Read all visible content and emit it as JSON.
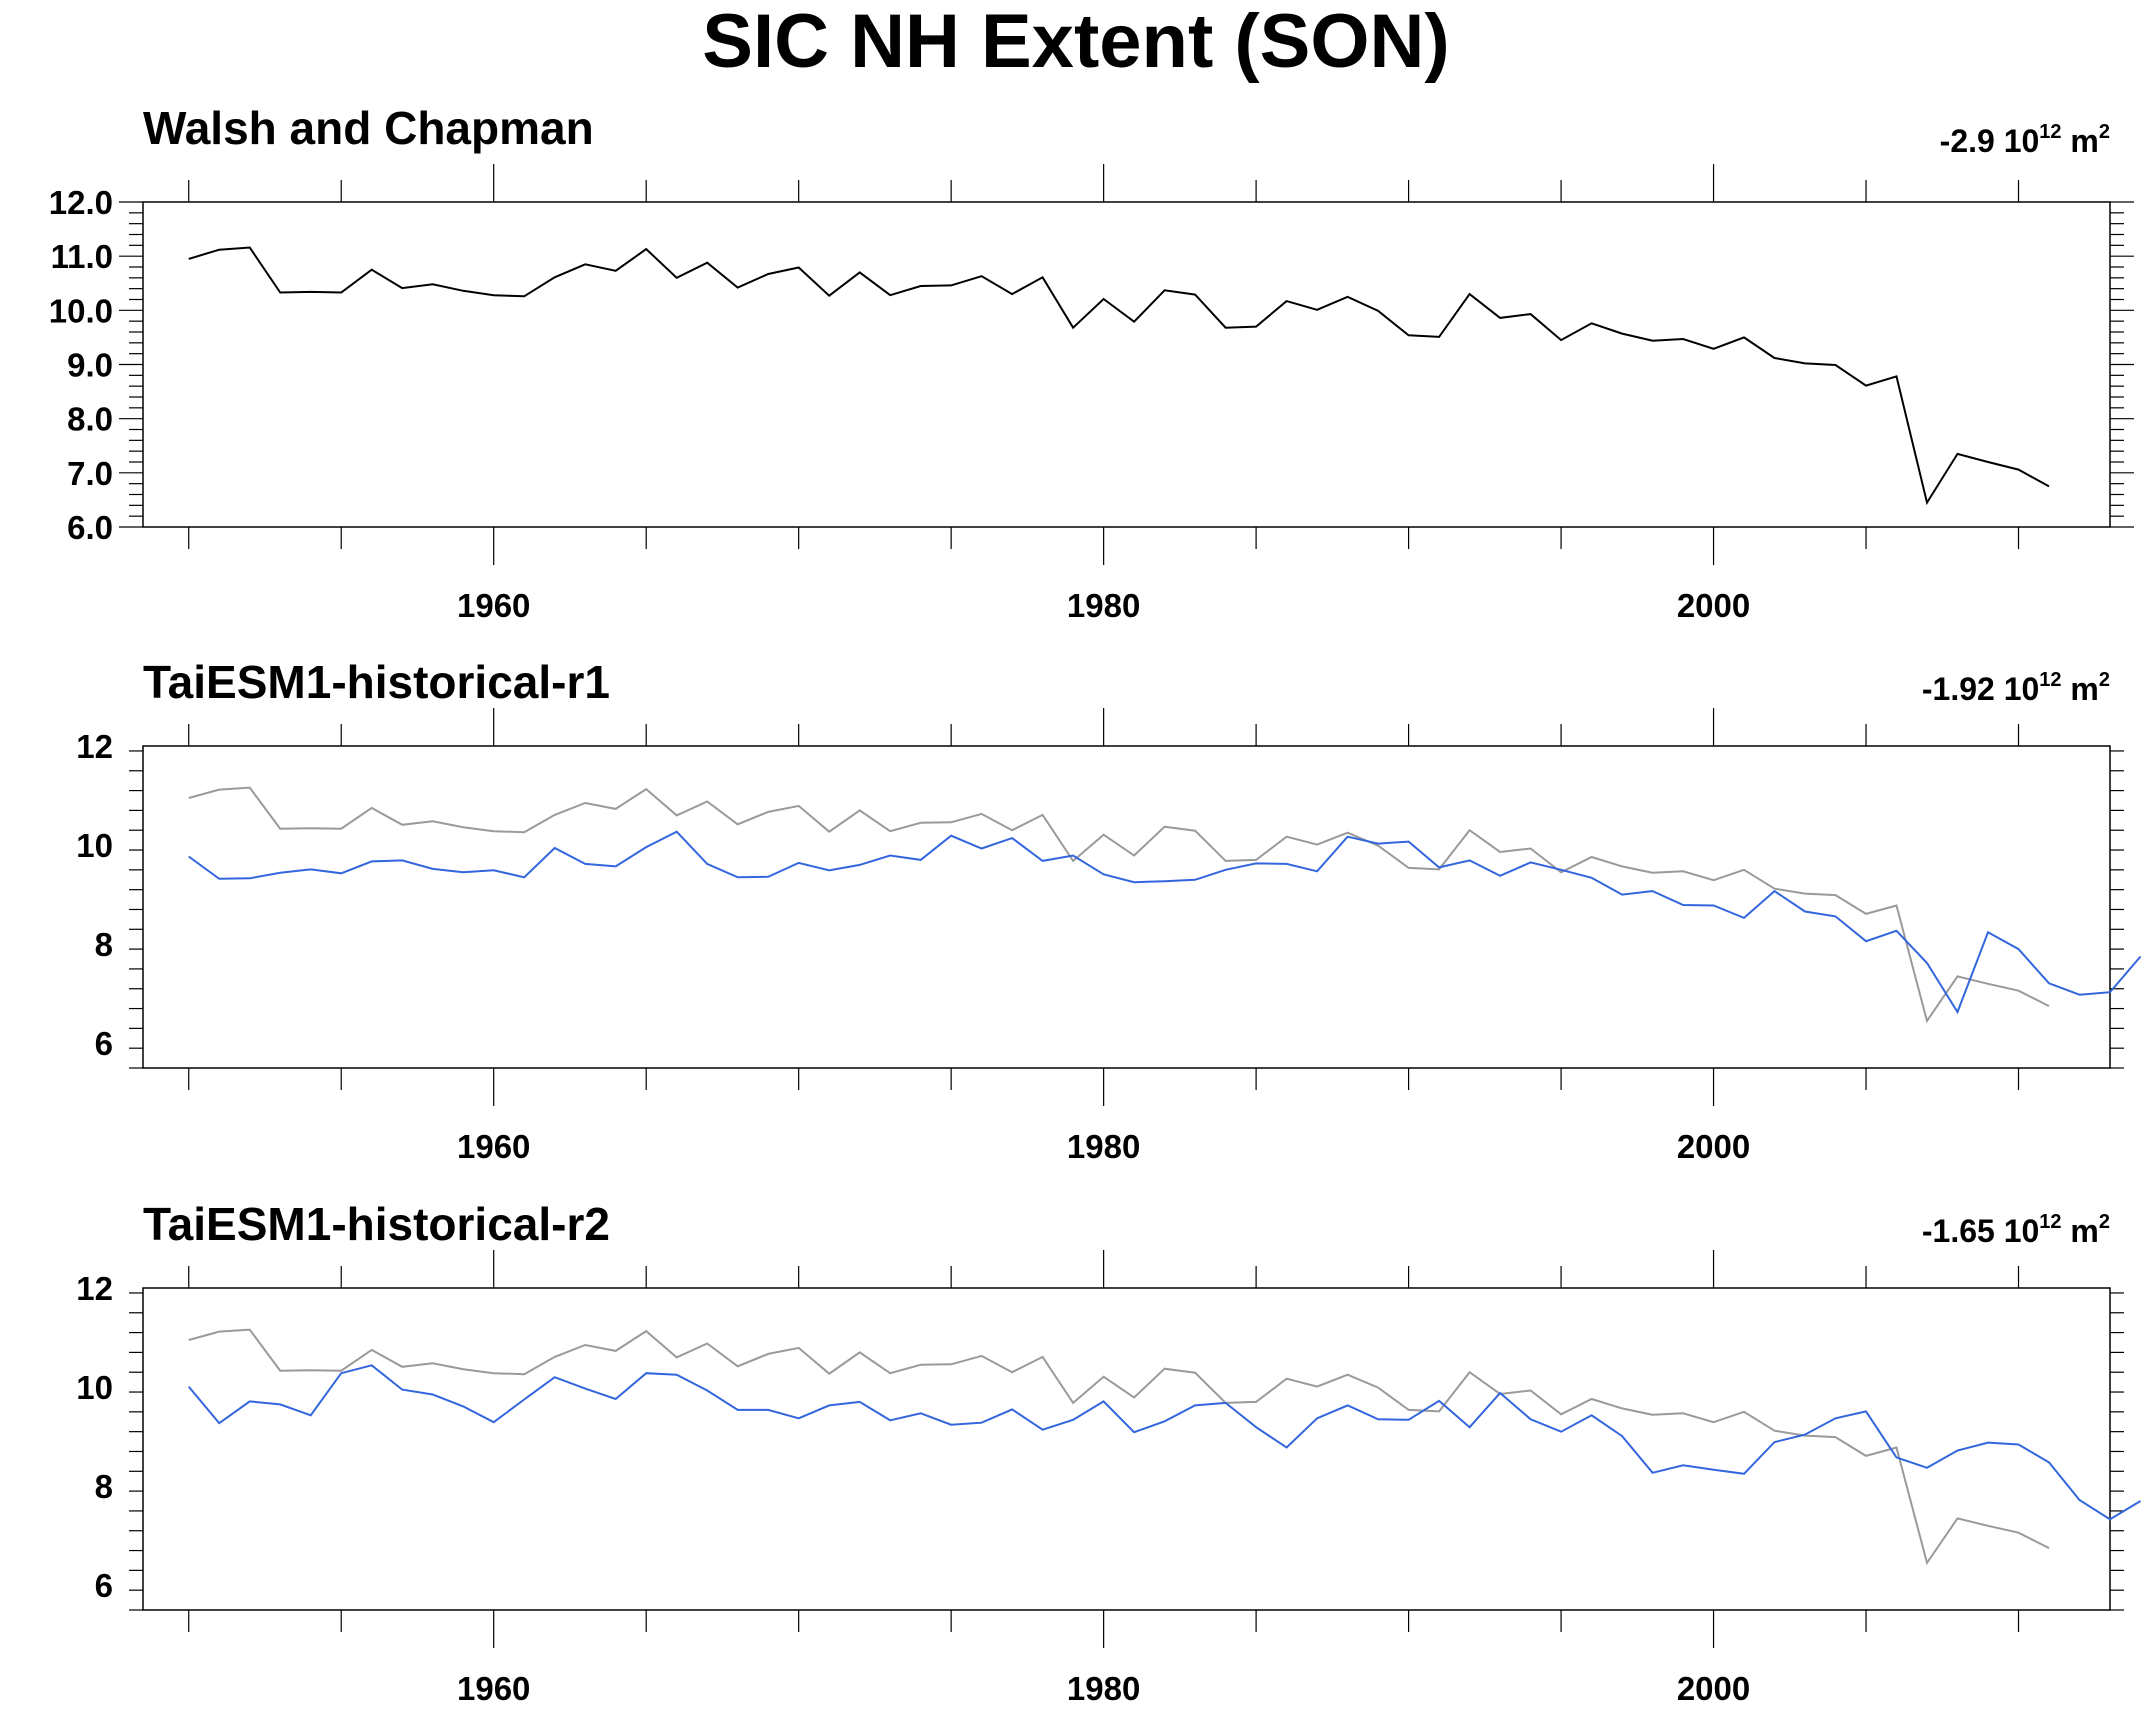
{
  "figure_title": "SIC NH Extent (SON)",
  "colors": {
    "observation": "#000000",
    "observation_overlay": "#9a9a9a",
    "model": "#3366dd"
  },
  "chart_data": [
    {
      "type": "line",
      "title": "Walsh and Chapman",
      "trend_text": {
        "value": "-2.9",
        "base": "10",
        "exponent": "12",
        "unit": "m",
        "unit_exponent": "2"
      },
      "xlim": [
        1948.5,
        2013
      ],
      "ylim": [
        6.0,
        12.0
      ],
      "yticks": [
        6.0,
        7.0,
        8.0,
        9.0,
        10.0,
        11.0,
        12.0
      ],
      "yticklabels": [
        "6.0",
        "7.0",
        "8.0",
        "9.0",
        "10.0",
        "11.0",
        "12.0"
      ],
      "xticks": [
        1960,
        1980,
        2000
      ],
      "xticklabels": [
        "1960",
        "1980",
        "2000"
      ],
      "series": [
        {
          "role": "observation",
          "x_start": 1950,
          "values": [
            10.95,
            11.12,
            11.16,
            10.33,
            10.34,
            10.33,
            10.75,
            10.41,
            10.48,
            10.36,
            10.28,
            10.26,
            10.61,
            10.85,
            10.73,
            11.13,
            10.6,
            10.88,
            10.42,
            10.67,
            10.79,
            10.27,
            10.7,
            10.28,
            10.45,
            10.46,
            10.63,
            10.3,
            10.61,
            9.68,
            10.21,
            9.79,
            10.37,
            10.29,
            9.68,
            9.7,
            10.17,
            10.01,
            10.25,
            9.99,
            9.54,
            9.51,
            10.3,
            9.86,
            9.93,
            9.45,
            9.76,
            9.57,
            9.44,
            9.47,
            9.29,
            9.5,
            9.12,
            9.02,
            8.99,
            8.61,
            8.78,
            6.45,
            7.35,
            7.2,
            7.06,
            6.75
          ]
        }
      ]
    },
    {
      "type": "line",
      "title": "TaiESM1-historical-r1",
      "trend_text": {
        "value": "-1.92",
        "base": "10",
        "exponent": "12",
        "unit": "m",
        "unit_exponent": "2"
      },
      "xlim": [
        1948.5,
        2013
      ],
      "ylim": [
        5.5,
        12.0
      ],
      "yticks": [
        6,
        8,
        10,
        12
      ],
      "yticklabels": [
        "6",
        "8",
        "10",
        "12"
      ],
      "xticks": [
        1960,
        1980,
        2000
      ],
      "xticklabels": [
        "1960",
        "1980",
        "2000"
      ],
      "series": [
        {
          "role": "observation_overlay",
          "x_start": 1950,
          "values": [
            10.95,
            11.12,
            11.16,
            10.33,
            10.34,
            10.33,
            10.75,
            10.41,
            10.48,
            10.36,
            10.28,
            10.26,
            10.61,
            10.85,
            10.73,
            11.13,
            10.6,
            10.88,
            10.42,
            10.67,
            10.79,
            10.27,
            10.7,
            10.28,
            10.45,
            10.46,
            10.63,
            10.3,
            10.61,
            9.68,
            10.21,
            9.79,
            10.37,
            10.29,
            9.68,
            9.7,
            10.17,
            10.01,
            10.25,
            9.99,
            9.54,
            9.51,
            10.3,
            9.86,
            9.93,
            9.45,
            9.76,
            9.57,
            9.44,
            9.47,
            9.29,
            9.5,
            9.12,
            9.02,
            8.99,
            8.61,
            8.78,
            6.45,
            7.35,
            7.2,
            7.06,
            6.75
          ]
        },
        {
          "role": "model",
          "x_start": 1950,
          "values": [
            9.77,
            9.32,
            9.33,
            9.44,
            9.51,
            9.43,
            9.67,
            9.69,
            9.52,
            9.45,
            9.49,
            9.35,
            9.94,
            9.62,
            9.57,
            9.96,
            10.27,
            9.62,
            9.35,
            9.36,
            9.64,
            9.49,
            9.6,
            9.79,
            9.7,
            10.19,
            9.93,
            10.14,
            9.68,
            9.79,
            9.41,
            9.25,
            9.27,
            9.3,
            9.5,
            9.63,
            9.62,
            9.47,
            10.17,
            10.03,
            10.07,
            9.55,
            9.69,
            9.38,
            9.65,
            9.5,
            9.34,
            9.0,
            9.07,
            8.79,
            8.78,
            8.53,
            9.07,
            8.66,
            8.56,
            8.06,
            8.27,
            7.62,
            6.63,
            8.24,
            7.9,
            7.21,
            6.98,
            7.03,
            7.75
          ]
        }
      ]
    },
    {
      "type": "line",
      "title": "TaiESM1-historical-r2",
      "trend_text": {
        "value": "-1.65",
        "base": "10",
        "exponent": "12",
        "unit": "m",
        "unit_exponent": "2"
      },
      "xlim": [
        1948.5,
        2013
      ],
      "ylim": [
        5.5,
        12.0
      ],
      "yticks": [
        6,
        8,
        10,
        12
      ],
      "yticklabels": [
        "6",
        "8",
        "10",
        "12"
      ],
      "xticks": [
        1960,
        1980,
        2000
      ],
      "xticklabels": [
        "1960",
        "1980",
        "2000"
      ],
      "series": [
        {
          "role": "observation_overlay",
          "x_start": 1950,
          "values": [
            10.95,
            11.12,
            11.16,
            10.33,
            10.34,
            10.33,
            10.75,
            10.41,
            10.48,
            10.36,
            10.28,
            10.26,
            10.61,
            10.85,
            10.73,
            11.13,
            10.6,
            10.88,
            10.42,
            10.67,
            10.79,
            10.27,
            10.7,
            10.28,
            10.45,
            10.46,
            10.63,
            10.3,
            10.61,
            9.68,
            10.21,
            9.79,
            10.37,
            10.29,
            9.68,
            9.7,
            10.17,
            10.01,
            10.25,
            9.99,
            9.54,
            9.51,
            10.3,
            9.86,
            9.93,
            9.45,
            9.76,
            9.57,
            9.44,
            9.47,
            9.29,
            9.5,
            9.12,
            9.02,
            8.99,
            8.61,
            8.78,
            6.45,
            7.35,
            7.2,
            7.06,
            6.75
          ]
        },
        {
          "role": "model",
          "x_start": 1950,
          "values": [
            10.01,
            9.27,
            9.71,
            9.65,
            9.43,
            10.28,
            10.44,
            9.95,
            9.85,
            9.61,
            9.29,
            9.75,
            10.2,
            9.97,
            9.76,
            10.28,
            10.25,
            9.93,
            9.54,
            9.54,
            9.37,
            9.63,
            9.7,
            9.33,
            9.47,
            9.24,
            9.28,
            9.55,
            9.14,
            9.34,
            9.71,
            9.09,
            9.31,
            9.63,
            9.68,
            9.19,
            8.78,
            9.37,
            9.63,
            9.35,
            9.34,
            9.72,
            9.19,
            9.88,
            9.35,
            9.1,
            9.43,
            9.01,
            8.27,
            8.42,
            8.33,
            8.25,
            8.89,
            9.04,
            9.37,
            9.51,
            8.58,
            8.37,
            8.72,
            8.88,
            8.84,
            8.48,
            7.72,
            7.33,
            7.7
          ]
        }
      ]
    }
  ]
}
